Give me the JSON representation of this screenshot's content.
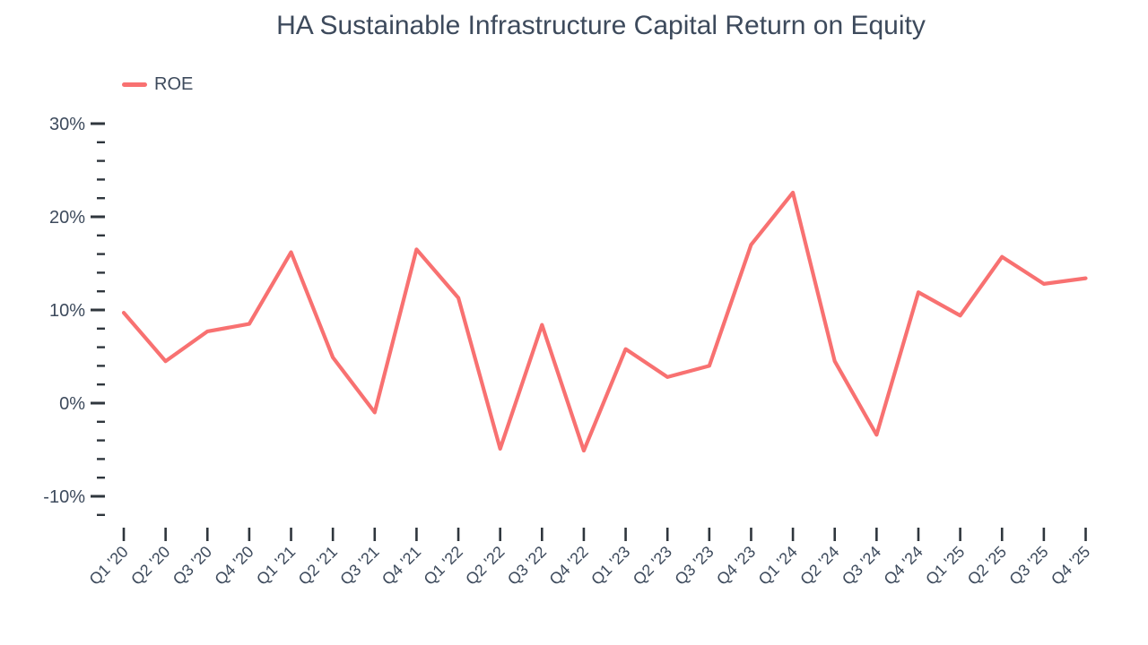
{
  "chart_data": {
    "type": "line",
    "title": "HA Sustainable Infrastructure Capital Return on Equity",
    "xlabel": "",
    "ylabel": "",
    "categories": [
      "Q1 '20",
      "Q2 '20",
      "Q3 '20",
      "Q4 '20",
      "Q1 '21",
      "Q2 '21",
      "Q3 '21",
      "Q4 '21",
      "Q1 '22",
      "Q2 '22",
      "Q3 '22",
      "Q4 '22",
      "Q1 '23",
      "Q2 '23",
      "Q3 '23",
      "Q4 '23",
      "Q1 '24",
      "Q2 '24",
      "Q3 '24",
      "Q4 '24",
      "Q1 '25",
      "Q2 '25",
      "Q3 '25",
      "Q4 '25"
    ],
    "series": [
      {
        "name": "ROE",
        "color": "#F87171",
        "values": [
          9.7,
          4.5,
          7.7,
          8.5,
          16.2,
          4.9,
          -1.0,
          16.5,
          11.3,
          -4.9,
          8.4,
          -5.1,
          5.8,
          2.8,
          4.0,
          17.0,
          22.6,
          4.5,
          -3.4,
          11.9,
          9.4,
          15.7,
          12.8,
          13.4
        ]
      }
    ],
    "y_axis": {
      "unit": "%",
      "range": [
        -12,
        30
      ],
      "major_ticks": [
        30,
        20,
        10,
        0,
        -10
      ],
      "major_tick_labels": [
        "30%",
        "20%",
        "10%",
        "0%",
        "-10%"
      ],
      "minor_tick_step": 2
    },
    "legend_position": "top-left",
    "grid": false,
    "colors": {
      "line": "#F87171",
      "tick": "#2f363d",
      "label": "#3d4a5c",
      "title": "#3d4a5c"
    }
  }
}
